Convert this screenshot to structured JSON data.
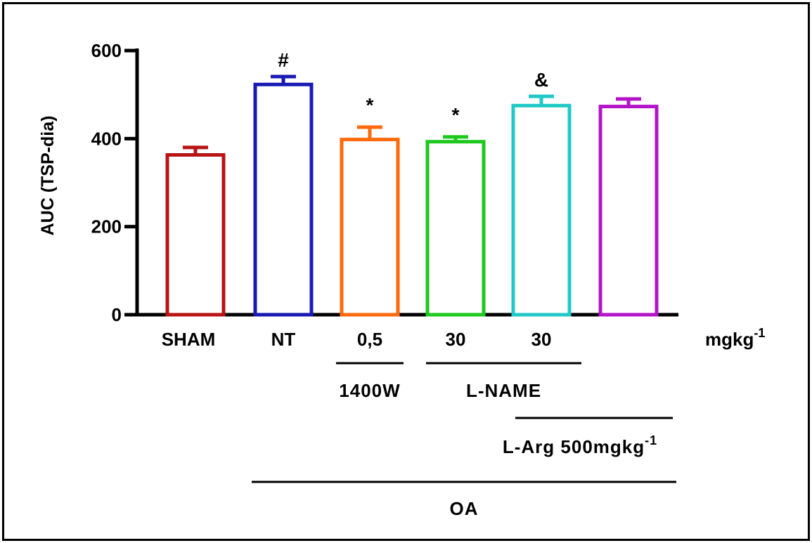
{
  "chart_data": {
    "type": "bar",
    "ylabel": "AUC (TSP-dia)",
    "ylim": [
      0,
      600
    ],
    "yticks": [
      0,
      200,
      400,
      600
    ],
    "categories": [
      "SHAM",
      "NT",
      "0,5",
      "30",
      "30",
      ""
    ],
    "values": [
      363,
      523,
      398,
      393,
      475,
      473
    ],
    "errors": [
      17,
      18,
      28,
      11,
      21,
      17
    ],
    "colors": [
      "#b81414",
      "#1919b4",
      "#ff6a0d",
      "#1ec81e",
      "#22c8c8",
      "#b414c8"
    ],
    "annotations": [
      "",
      "#",
      "*",
      "*",
      "&",
      ""
    ],
    "unit_label": "mgkg",
    "unit_sup": "-1",
    "groups": [
      {
        "label": "1400W",
        "from": 2,
        "to": 2
      },
      {
        "label": "L-NAME",
        "from": 3,
        "to": 4
      },
      {
        "label": "L-Arg 500mgkg",
        "sup": "-1",
        "from": 4,
        "to": 5
      },
      {
        "label": "OA",
        "from": 1,
        "to": 5
      }
    ]
  }
}
